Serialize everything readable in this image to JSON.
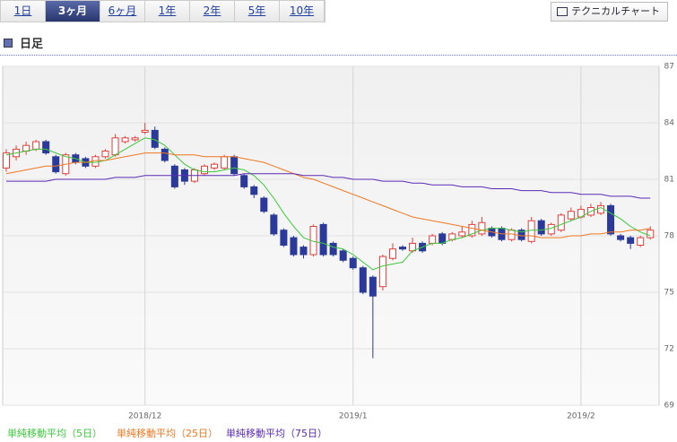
{
  "tabs": [
    "1日",
    "3ヶ月",
    "6ヶ月",
    "1年",
    "2年",
    "5年",
    "10年"
  ],
  "active_tab": 1,
  "button": "テクニカルチャート",
  "period_label": "日足",
  "chart_data": {
    "type": "candlestick",
    "ylim": [
      69,
      87
    ],
    "yticks": [
      69,
      72,
      75,
      78,
      81,
      84,
      87
    ],
    "xticks": [
      {
        "value": 14,
        "label": "2018/12"
      },
      {
        "value": 35,
        "label": "2019/1"
      },
      {
        "value": 58,
        "label": "2019/2"
      }
    ],
    "grid": true,
    "up_color": "#e0403c",
    "down_color": "#2b3a9a",
    "open": [
      81.6,
      82.2,
      82.5,
      82.6,
      83.0,
      82.2,
      81.3,
      82.3,
      82.1,
      81.7,
      82.2,
      82.3,
      83.0,
      83.1,
      83.5,
      83.6,
      82.6,
      81.7,
      81.5,
      80.9,
      81.3,
      81.6,
      81.6,
      82.2,
      81.2,
      80.6,
      80.0,
      79.1,
      78.3,
      77.9,
      77.4,
      77.0,
      78.6,
      77.6,
      77.2,
      76.8,
      76.3,
      75.8,
      75.3,
      76.8,
      77.4,
      77.2,
      77.6,
      77.6,
      78.1,
      77.8,
      78.0,
      78.0,
      78.1,
      78.4,
      78.4,
      77.8,
      78.3,
      77.7,
      78.8,
      78.1,
      78.3,
      78.9,
      79.0,
      79.1,
      79.2,
      79.6,
      78.0,
      77.9,
      77.5,
      77.9
    ],
    "high": [
      82.6,
      82.8,
      83.0,
      83.1,
      83.1,
      82.3,
      82.4,
      82.4,
      82.2,
      82.3,
      82.6,
      83.4,
      83.3,
      83.3,
      84.0,
      83.8,
      82.7,
      81.8,
      81.6,
      81.6,
      81.8,
      81.9,
      82.3,
      82.3,
      81.3,
      80.7,
      80.1,
      79.2,
      78.4,
      78.0,
      77.5,
      78.6,
      78.7,
      77.7,
      77.3,
      76.9,
      76.4,
      75.9,
      77.0,
      77.6,
      77.5,
      77.9,
      77.7,
      78.1,
      78.2,
      78.2,
      78.5,
      78.8,
      79.0,
      78.5,
      78.5,
      78.4,
      78.4,
      79.0,
      78.9,
      78.7,
      79.2,
      79.5,
      79.6,
      79.7,
      79.8,
      79.7,
      78.1,
      78.0,
      78.0,
      78.5
    ],
    "low": [
      81.4,
      82.0,
      82.3,
      82.5,
      82.3,
      81.3,
      81.2,
      81.8,
      81.6,
      81.6,
      82.1,
      82.2,
      82.9,
      83.0,
      83.4,
      82.6,
      81.9,
      80.5,
      80.7,
      80.8,
      81.2,
      81.5,
      81.5,
      81.2,
      80.5,
      80.0,
      79.2,
      78.0,
      77.4,
      76.9,
      76.8,
      76.9,
      76.9,
      76.9,
      76.6,
      76.2,
      74.9,
      71.5,
      75.1,
      76.7,
      77.2,
      77.1,
      77.1,
      77.5,
      77.5,
      77.7,
      77.9,
      77.9,
      78.0,
      77.9,
      77.7,
      77.7,
      77.7,
      77.6,
      78.0,
      78.0,
      78.2,
      78.8,
      78.9,
      79.0,
      79.1,
      78.0,
      77.7,
      77.3,
      77.4,
      77.8
    ],
    "close": [
      82.4,
      82.6,
      82.8,
      83.0,
      82.4,
      81.4,
      82.3,
      81.9,
      81.7,
      82.2,
      82.5,
      83.2,
      83.2,
      83.2,
      83.6,
      82.7,
      82.0,
      80.6,
      80.9,
      81.5,
      81.7,
      81.8,
      82.2,
      81.3,
      80.6,
      80.2,
      79.3,
      78.1,
      77.5,
      77.0,
      77.0,
      78.5,
      77.0,
      77.0,
      76.7,
      76.3,
      75.0,
      74.8,
      76.9,
      77.3,
      77.3,
      77.6,
      77.2,
      78.0,
      77.6,
      78.1,
      78.2,
      78.6,
      78.7,
      78.0,
      77.8,
      78.3,
      77.8,
      78.8,
      78.1,
      78.6,
      79.1,
      79.3,
      79.4,
      79.5,
      79.6,
      78.1,
      77.8,
      77.6,
      77.9,
      78.3
    ],
    "series": [
      {
        "name": "単純移動平均（5日）",
        "color": "#3cc83c",
        "values": [
          82.3,
          82.4,
          82.5,
          82.6,
          82.6,
          82.4,
          82.2,
          82.1,
          81.9,
          81.9,
          82.0,
          82.3,
          82.6,
          82.9,
          83.2,
          83.1,
          82.8,
          82.3,
          81.8,
          81.5,
          81.4,
          81.4,
          81.5,
          81.6,
          81.5,
          81.2,
          80.7,
          80.0,
          79.2,
          78.5,
          77.9,
          77.7,
          77.6,
          77.4,
          77.3,
          77.0,
          76.6,
          76.2,
          76.4,
          76.5,
          76.6,
          77.2,
          77.4,
          77.6,
          77.6,
          77.8,
          77.9,
          78.1,
          78.3,
          78.4,
          78.4,
          78.3,
          78.2,
          78.3,
          78.3,
          78.4,
          78.6,
          78.8,
          79.0,
          79.3,
          79.5,
          79.2,
          78.9,
          78.5,
          78.2,
          78.0
        ]
      },
      {
        "name": "単純移動平均（25日）",
        "color": "#f07820",
        "values": [
          81.3,
          81.4,
          81.5,
          81.6,
          81.7,
          81.7,
          81.8,
          81.9,
          81.9,
          82.0,
          82.0,
          82.1,
          82.2,
          82.3,
          82.4,
          82.4,
          82.4,
          82.3,
          82.3,
          82.3,
          82.2,
          82.2,
          82.2,
          82.2,
          82.1,
          82.0,
          81.9,
          81.7,
          81.5,
          81.3,
          81.1,
          81.0,
          80.8,
          80.6,
          80.4,
          80.2,
          80.0,
          79.8,
          79.6,
          79.4,
          79.2,
          79.0,
          78.9,
          78.8,
          78.7,
          78.6,
          78.5,
          78.4,
          78.3,
          78.2,
          78.1,
          78.1,
          78.0,
          78.0,
          77.9,
          77.9,
          77.9,
          78.0,
          78.0,
          78.1,
          78.1,
          78.2,
          78.2,
          78.3,
          78.3,
          78.4
        ]
      },
      {
        "name": "単純移動平均（75日）",
        "color": "#5a2ab4",
        "values": [
          80.9,
          80.9,
          80.9,
          80.9,
          80.9,
          81.0,
          81.0,
          81.0,
          81.0,
          81.0,
          81.0,
          81.1,
          81.1,
          81.1,
          81.2,
          81.2,
          81.2,
          81.2,
          81.2,
          81.2,
          81.2,
          81.2,
          81.2,
          81.2,
          81.3,
          81.3,
          81.3,
          81.3,
          81.3,
          81.3,
          81.2,
          81.2,
          81.2,
          81.1,
          81.1,
          81.0,
          81.0,
          81.0,
          80.9,
          80.9,
          80.9,
          80.8,
          80.8,
          80.7,
          80.7,
          80.7,
          80.6,
          80.6,
          80.6,
          80.5,
          80.5,
          80.5,
          80.4,
          80.4,
          80.4,
          80.3,
          80.3,
          80.3,
          80.2,
          80.2,
          80.2,
          80.1,
          80.1,
          80.1,
          80.0,
          80.0
        ]
      }
    ]
  }
}
